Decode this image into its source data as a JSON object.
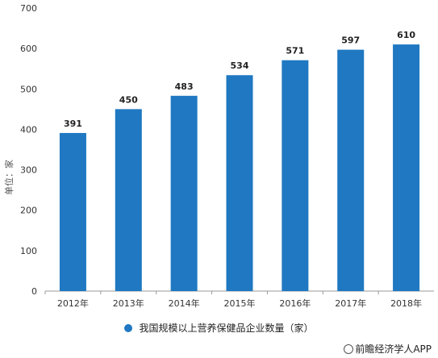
{
  "chart_data": {
    "type": "bar",
    "categories": [
      "2012年",
      "2013年",
      "2014年",
      "2015年",
      "2016年",
      "2017年",
      "2018年"
    ],
    "series": [
      {
        "name": "我国规模以上营养保健品企业数量（家）",
        "values": [
          391,
          450,
          483,
          534,
          571,
          597,
          610
        ]
      }
    ],
    "title": "",
    "xlabel": "",
    "ylabel": "单位：家",
    "ylim": [
      0,
      700
    ],
    "yticks": [
      0,
      100,
      200,
      300,
      400,
      500,
      600,
      700
    ],
    "grid": false,
    "legend_position": "bottom",
    "bar_color": "#1f78c1",
    "data_labels": true
  },
  "credit": "前瞻经济学人APP",
  "credit_icon": "magnifier-icon"
}
